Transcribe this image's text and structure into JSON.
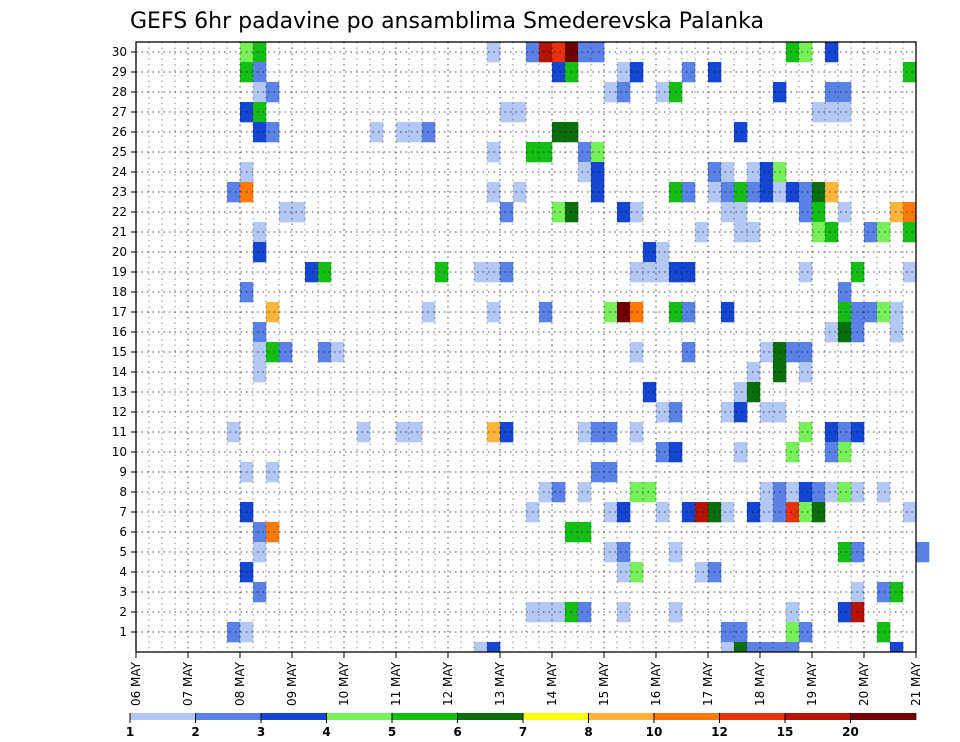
{
  "chart_data": {
    "type": "heatmap",
    "title": "GEFS 6hr padavine po ansamblima Smederevska Palanka",
    "x_ticks": [
      "06 MAY",
      "07 MAY",
      "08 MAY",
      "09 MAY",
      "10 MAY",
      "11 MAY",
      "12 MAY",
      "13 MAY",
      "14 MAY",
      "15 MAY",
      "16 MAY",
      "17 MAY",
      "18 MAY",
      "19 MAY",
      "20 MAY",
      "21 MAY"
    ],
    "y_ticks": [
      1,
      2,
      3,
      4,
      5,
      6,
      7,
      8,
      9,
      10,
      11,
      12,
      13,
      14,
      15,
      16,
      17,
      18,
      19,
      20,
      21,
      22,
      23,
      24,
      25,
      26,
      27,
      28,
      29,
      30
    ],
    "ylim": [
      0,
      30
    ],
    "time_steps": 60,
    "grid": true,
    "legend": {
      "position": "bottom",
      "labels": [
        "1",
        "2",
        "3",
        "4",
        "5",
        "6",
        "7",
        "8",
        "10",
        "12",
        "15",
        "20"
      ],
      "colors": [
        "#b4c8f5",
        "#5a82e6",
        "#1446d2",
        "#78f05a",
        "#14be14",
        "#0a6e0a",
        "#ffff14",
        "#ffb43c",
        "#ff780a",
        "#e6320a",
        "#b41400",
        "#6e0000"
      ]
    },
    "cells": [
      [
        30,
        8,
        4
      ],
      [
        30,
        9,
        5
      ],
      [
        30,
        27,
        1
      ],
      [
        30,
        30,
        2
      ],
      [
        30,
        31,
        11
      ],
      [
        30,
        32,
        10
      ],
      [
        30,
        33,
        12
      ],
      [
        30,
        34,
        2
      ],
      [
        30,
        35,
        2
      ],
      [
        30,
        50,
        5
      ],
      [
        30,
        51,
        4
      ],
      [
        30,
        53,
        3
      ],
      [
        29,
        8,
        5
      ],
      [
        29,
        9,
        2
      ],
      [
        29,
        32,
        3
      ],
      [
        29,
        33,
        5
      ],
      [
        29,
        37,
        1
      ],
      [
        29,
        38,
        3
      ],
      [
        29,
        42,
        2
      ],
      [
        29,
        44,
        3
      ],
      [
        29,
        59,
        5
      ],
      [
        28,
        9,
        1
      ],
      [
        28,
        10,
        2
      ],
      [
        28,
        36,
        1
      ],
      [
        28,
        37,
        2
      ],
      [
        28,
        40,
        1
      ],
      [
        28,
        41,
        5
      ],
      [
        28,
        49,
        3
      ],
      [
        28,
        53,
        2
      ],
      [
        28,
        54,
        2
      ],
      [
        27,
        8,
        3
      ],
      [
        27,
        9,
        5
      ],
      [
        27,
        28,
        1
      ],
      [
        27,
        29,
        1
      ],
      [
        27,
        52,
        1
      ],
      [
        27,
        53,
        1
      ],
      [
        27,
        54,
        1
      ],
      [
        26,
        9,
        3
      ],
      [
        26,
        10,
        2
      ],
      [
        26,
        18,
        1
      ],
      [
        26,
        20,
        1
      ],
      [
        26,
        21,
        1
      ],
      [
        26,
        22,
        2
      ],
      [
        26,
        32,
        6
      ],
      [
        26,
        33,
        6
      ],
      [
        26,
        46,
        3
      ],
      [
        25,
        27,
        1
      ],
      [
        25,
        30,
        5
      ],
      [
        25,
        31,
        5
      ],
      [
        25,
        34,
        2
      ],
      [
        25,
        35,
        4
      ],
      [
        24,
        8,
        1
      ],
      [
        24,
        34,
        1
      ],
      [
        24,
        35,
        3
      ],
      [
        24,
        44,
        2
      ],
      [
        24,
        45,
        1
      ],
      [
        24,
        47,
        1
      ],
      [
        24,
        48,
        3
      ],
      [
        24,
        49,
        4
      ],
      [
        23,
        7,
        2
      ],
      [
        23,
        8,
        9
      ],
      [
        23,
        27,
        1
      ],
      [
        23,
        29,
        1
      ],
      [
        23,
        35,
        3
      ],
      [
        23,
        41,
        5
      ],
      [
        23,
        42,
        2
      ],
      [
        23,
        44,
        1
      ],
      [
        23,
        45,
        2
      ],
      [
        23,
        46,
        5
      ],
      [
        23,
        47,
        2
      ],
      [
        23,
        48,
        3
      ],
      [
        23,
        49,
        1
      ],
      [
        23,
        50,
        3
      ],
      [
        23,
        51,
        2
      ],
      [
        23,
        52,
        6
      ],
      [
        23,
        53,
        8
      ],
      [
        22,
        11,
        1
      ],
      [
        22,
        12,
        1
      ],
      [
        22,
        28,
        2
      ],
      [
        22,
        32,
        4
      ],
      [
        22,
        33,
        6
      ],
      [
        22,
        37,
        3
      ],
      [
        22,
        38,
        1
      ],
      [
        22,
        45,
        1
      ],
      [
        22,
        46,
        1
      ],
      [
        22,
        51,
        2
      ],
      [
        22,
        52,
        5
      ],
      [
        22,
        54,
        1
      ],
      [
        22,
        58,
        8
      ],
      [
        22,
        59,
        9
      ],
      [
        21,
        9,
        1
      ],
      [
        21,
        43,
        1
      ],
      [
        21,
        46,
        1
      ],
      [
        21,
        47,
        1
      ],
      [
        21,
        52,
        4
      ],
      [
        21,
        53,
        5
      ],
      [
        21,
        56,
        2
      ],
      [
        21,
        57,
        4
      ],
      [
        21,
        59,
        5
      ],
      [
        20,
        9,
        3
      ],
      [
        20,
        39,
        3
      ],
      [
        20,
        40,
        1
      ],
      [
        19,
        13,
        3
      ],
      [
        19,
        14,
        5
      ],
      [
        19,
        23,
        5
      ],
      [
        19,
        26,
        1
      ],
      [
        19,
        27,
        1
      ],
      [
        19,
        28,
        2
      ],
      [
        19,
        38,
        1
      ],
      [
        19,
        39,
        1
      ],
      [
        19,
        40,
        1
      ],
      [
        19,
        41,
        3
      ],
      [
        19,
        42,
        3
      ],
      [
        19,
        51,
        1
      ],
      [
        19,
        55,
        5
      ],
      [
        19,
        59,
        1
      ],
      [
        18,
        8,
        2
      ],
      [
        18,
        54,
        2
      ],
      [
        17,
        10,
        8
      ],
      [
        17,
        22,
        1
      ],
      [
        17,
        27,
        1
      ],
      [
        17,
        31,
        2
      ],
      [
        17,
        36,
        4
      ],
      [
        17,
        37,
        12
      ],
      [
        17,
        38,
        9
      ],
      [
        17,
        41,
        5
      ],
      [
        17,
        42,
        2
      ],
      [
        17,
        45,
        3
      ],
      [
        17,
        54,
        5
      ],
      [
        17,
        55,
        2
      ],
      [
        17,
        56,
        2
      ],
      [
        17,
        57,
        4
      ],
      [
        17,
        58,
        1
      ],
      [
        16,
        9,
        2
      ],
      [
        16,
        53,
        1
      ],
      [
        16,
        54,
        6
      ],
      [
        16,
        55,
        2
      ],
      [
        16,
        58,
        1
      ],
      [
        15,
        9,
        1
      ],
      [
        15,
        10,
        5
      ],
      [
        15,
        11,
        2
      ],
      [
        15,
        14,
        2
      ],
      [
        15,
        15,
        1
      ],
      [
        15,
        38,
        1
      ],
      [
        15,
        42,
        2
      ],
      [
        15,
        48,
        1
      ],
      [
        15,
        49,
        6
      ],
      [
        15,
        50,
        2
      ],
      [
        15,
        51,
        2
      ],
      [
        14,
        9,
        1
      ],
      [
        14,
        47,
        1
      ],
      [
        14,
        49,
        6
      ],
      [
        14,
        51,
        1
      ],
      [
        13,
        39,
        3
      ],
      [
        13,
        46,
        1
      ],
      [
        13,
        47,
        6
      ],
      [
        12,
        40,
        1
      ],
      [
        12,
        41,
        2
      ],
      [
        12,
        45,
        1
      ],
      [
        12,
        46,
        3
      ],
      [
        12,
        48,
        1
      ],
      [
        12,
        49,
        1
      ],
      [
        11,
        7,
        1
      ],
      [
        11,
        17,
        1
      ],
      [
        11,
        20,
        1
      ],
      [
        11,
        21,
        1
      ],
      [
        11,
        27,
        8
      ],
      [
        11,
        28,
        3
      ],
      [
        11,
        34,
        1
      ],
      [
        11,
        35,
        2
      ],
      [
        11,
        36,
        2
      ],
      [
        11,
        38,
        1
      ],
      [
        11,
        51,
        4
      ],
      [
        11,
        53,
        3
      ],
      [
        11,
        54,
        2
      ],
      [
        11,
        55,
        3
      ],
      [
        10,
        40,
        2
      ],
      [
        10,
        41,
        3
      ],
      [
        10,
        46,
        1
      ],
      [
        10,
        50,
        4
      ],
      [
        10,
        53,
        2
      ],
      [
        10,
        54,
        4
      ],
      [
        9,
        8,
        1
      ],
      [
        9,
        10,
        1
      ],
      [
        9,
        35,
        2
      ],
      [
        9,
        36,
        2
      ],
      [
        8,
        31,
        1
      ],
      [
        8,
        32,
        2
      ],
      [
        8,
        34,
        1
      ],
      [
        8,
        38,
        4
      ],
      [
        8,
        39,
        4
      ],
      [
        8,
        48,
        1
      ],
      [
        8,
        49,
        2
      ],
      [
        8,
        50,
        1
      ],
      [
        8,
        51,
        3
      ],
      [
        8,
        52,
        2
      ],
      [
        8,
        53,
        1
      ],
      [
        8,
        54,
        4
      ],
      [
        8,
        55,
        1
      ],
      [
        8,
        57,
        1
      ],
      [
        7,
        8,
        3
      ],
      [
        7,
        30,
        1
      ],
      [
        7,
        36,
        1
      ],
      [
        7,
        37,
        3
      ],
      [
        7,
        40,
        1
      ],
      [
        7,
        42,
        3
      ],
      [
        7,
        43,
        11
      ],
      [
        7,
        44,
        6
      ],
      [
        7,
        45,
        1
      ],
      [
        7,
        47,
        3
      ],
      [
        7,
        48,
        1
      ],
      [
        7,
        49,
        2
      ],
      [
        7,
        50,
        10
      ],
      [
        7,
        51,
        4
      ],
      [
        7,
        52,
        6
      ],
      [
        7,
        59,
        1
      ],
      [
        6,
        9,
        2
      ],
      [
        6,
        10,
        9
      ],
      [
        6,
        33,
        5
      ],
      [
        6,
        34,
        5
      ],
      [
        5,
        9,
        1
      ],
      [
        5,
        36,
        1
      ],
      [
        5,
        37,
        2
      ],
      [
        5,
        41,
        1
      ],
      [
        5,
        54,
        5
      ],
      [
        5,
        55,
        2
      ],
      [
        5,
        60,
        2
      ],
      [
        4,
        8,
        3
      ],
      [
        4,
        37,
        1
      ],
      [
        4,
        38,
        4
      ],
      [
        4,
        43,
        1
      ],
      [
        4,
        44,
        2
      ],
      [
        3,
        9,
        2
      ],
      [
        3,
        55,
        1
      ],
      [
        3,
        57,
        2
      ],
      [
        3,
        58,
        5
      ],
      [
        2,
        30,
        1
      ],
      [
        2,
        31,
        1
      ],
      [
        2,
        32,
        1
      ],
      [
        2,
        33,
        5
      ],
      [
        2,
        34,
        2
      ],
      [
        2,
        37,
        1
      ],
      [
        2,
        41,
        1
      ],
      [
        2,
        50,
        1
      ],
      [
        2,
        54,
        3
      ],
      [
        2,
        55,
        11
      ],
      [
        1,
        7,
        2
      ],
      [
        1,
        8,
        1
      ],
      [
        1,
        45,
        2
      ],
      [
        1,
        46,
        2
      ],
      [
        1,
        50,
        4
      ],
      [
        1,
        51,
        2
      ],
      [
        1,
        57,
        5
      ],
      [
        0,
        26,
        1
      ],
      [
        0,
        27,
        3
      ],
      [
        0,
        45,
        1
      ],
      [
        0,
        46,
        6
      ],
      [
        0,
        47,
        2
      ],
      [
        0,
        48,
        2
      ],
      [
        0,
        49,
        2
      ],
      [
        0,
        50,
        2
      ],
      [
        0,
        58,
        3
      ]
    ]
  }
}
